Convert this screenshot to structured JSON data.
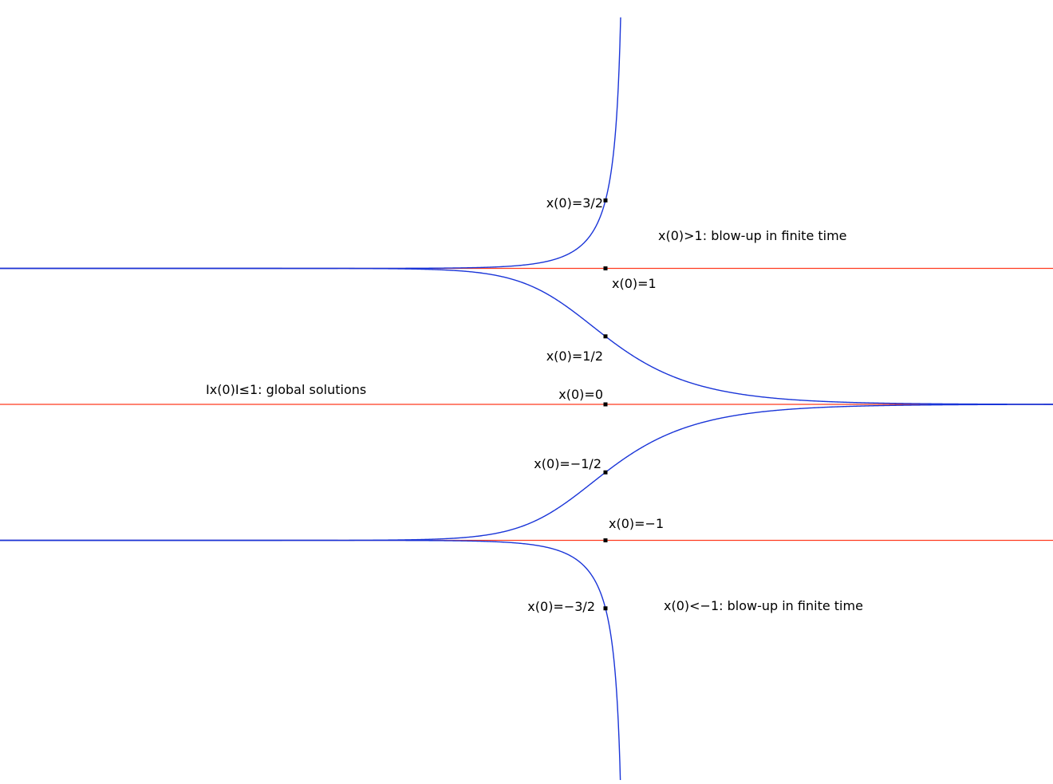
{
  "colors": {
    "equilibrium": "#ff3b1f",
    "solution": "#1a35d8",
    "marker": "#000000",
    "text": "#000000"
  },
  "equilibria": [
    {
      "id": "eq-plus-one",
      "value": 1
    },
    {
      "id": "eq-zero",
      "value": 0
    },
    {
      "id": "eq-minus-one",
      "value": -1
    }
  ],
  "solutions": [
    {
      "id": "sol-3-2",
      "x0": 1.5
    },
    {
      "id": "sol-1-2",
      "x0": 0.5
    },
    {
      "id": "sol-m1-2",
      "x0": -0.5
    },
    {
      "id": "sol-m3-2",
      "x0": -1.5
    }
  ],
  "markers": [
    {
      "id": "marker-3-2",
      "x0": 1.5
    },
    {
      "id": "marker-1",
      "x0": 1
    },
    {
      "id": "marker-1-2",
      "x0": 0.5
    },
    {
      "id": "marker-0",
      "x0": 0
    },
    {
      "id": "marker-m1-2",
      "x0": -0.5
    },
    {
      "id": "marker-m1",
      "x0": -1
    },
    {
      "id": "marker-m3-2",
      "x0": -1.5
    }
  ],
  "labels": {
    "x0_3_2": "x(0)=3/2",
    "x0_1": "x(0)=1",
    "x0_1_2": "x(0)=1/2",
    "x0_0": "x(0)=0",
    "x0_m1_2": "x(0)=−1/2",
    "x0_m1": "x(0)=−1",
    "x0_m3_2": "x(0)=−3/2",
    "region_upper": "x(0)>1: blow-up in finite time",
    "region_middle": "Ix(0)I≤1: global solutions",
    "region_lower": "x(0)<−1: blow-up in finite time"
  }
}
